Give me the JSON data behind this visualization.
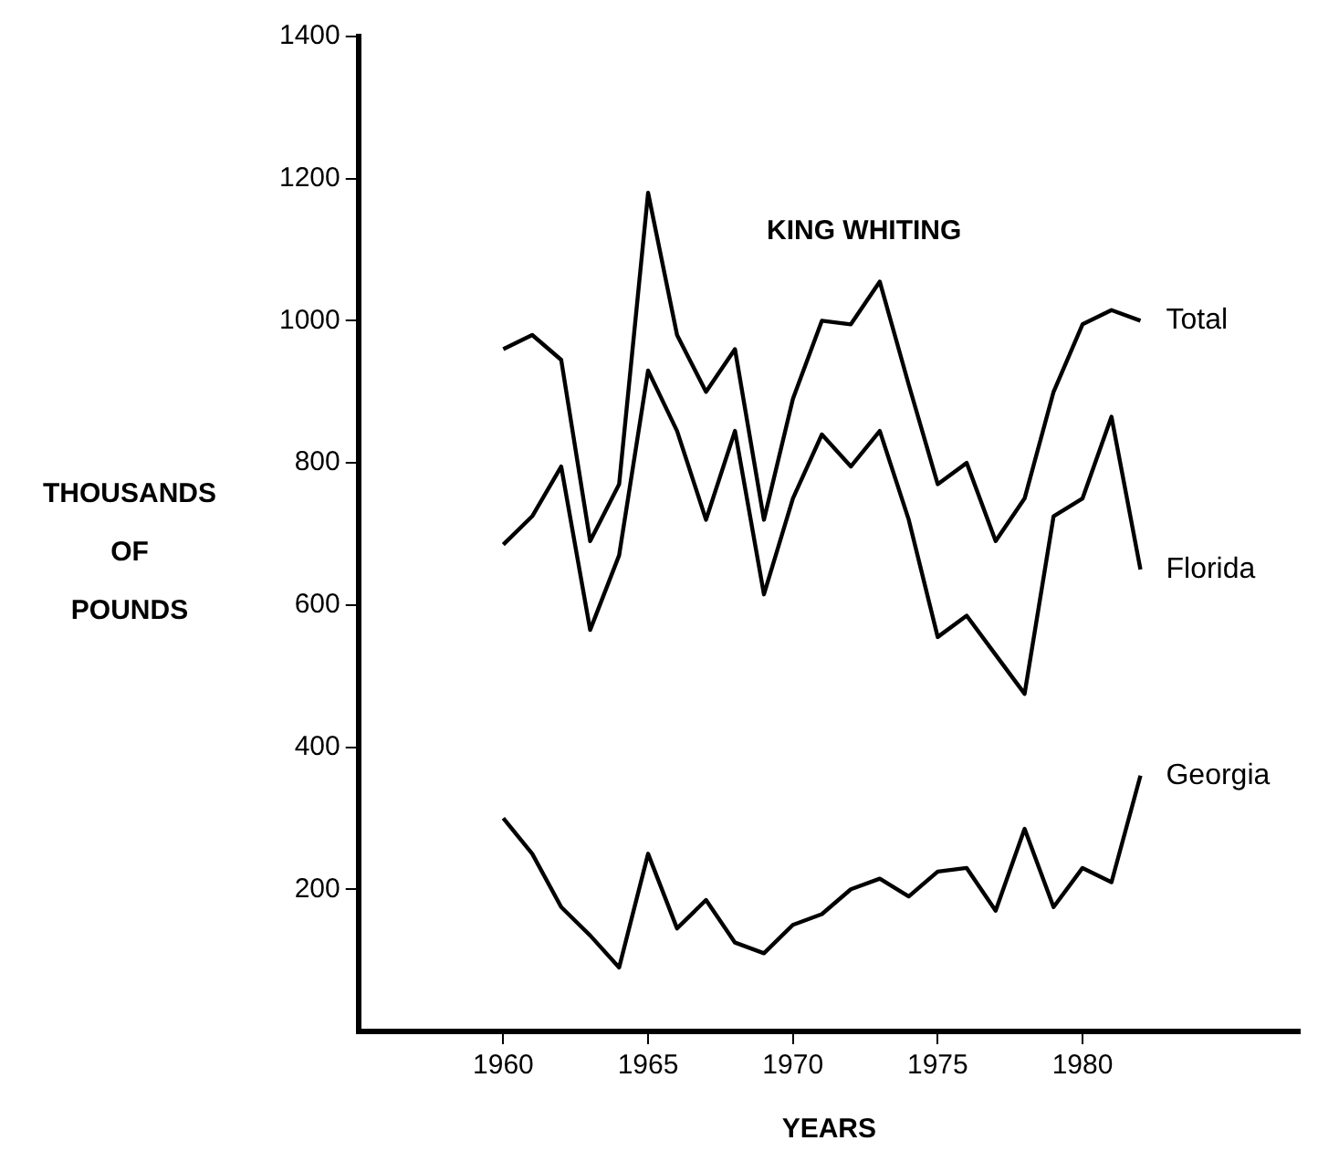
{
  "chart_data": {
    "type": "line",
    "title": "KING WHITING",
    "xlabel": "YEARS",
    "ylabel": "THOUSANDS\nOF\nPOUNDS",
    "x": [
      1960,
      1961,
      1962,
      1963,
      1964,
      1965,
      1966,
      1967,
      1968,
      1969,
      1970,
      1971,
      1972,
      1973,
      1974,
      1975,
      1976,
      1977,
      1978,
      1979,
      1980,
      1981,
      1982
    ],
    "series": [
      {
        "name": "Total",
        "color": "#000000",
        "values": [
          960,
          980,
          945,
          690,
          770,
          1180,
          980,
          900,
          960,
          720,
          890,
          1000,
          995,
          1055,
          910,
          770,
          800,
          690,
          750,
          900,
          995,
          1015,
          1000
        ]
      },
      {
        "name": "Florida",
        "color": "#000000",
        "values": [
          685,
          725,
          795,
          565,
          670,
          930,
          845,
          720,
          845,
          615,
          750,
          840,
          795,
          845,
          720,
          555,
          585,
          530,
          475,
          725,
          750,
          865,
          650
        ]
      },
      {
        "name": "Georgia",
        "color": "#000000",
        "values": [
          300,
          250,
          175,
          135,
          90,
          250,
          145,
          185,
          125,
          110,
          150,
          165,
          200,
          215,
          190,
          225,
          230,
          170,
          285,
          175,
          230,
          210,
          360
        ]
      }
    ],
    "xlim": [
      1955,
      1987.5
    ],
    "xticks": [
      1960,
      1965,
      1970,
      1975,
      1980
    ],
    "ylim": [
      0,
      1400
    ],
    "yticks": [
      200,
      400,
      600,
      800,
      1000,
      1200,
      1400
    ],
    "grid": false,
    "legend": false
  }
}
